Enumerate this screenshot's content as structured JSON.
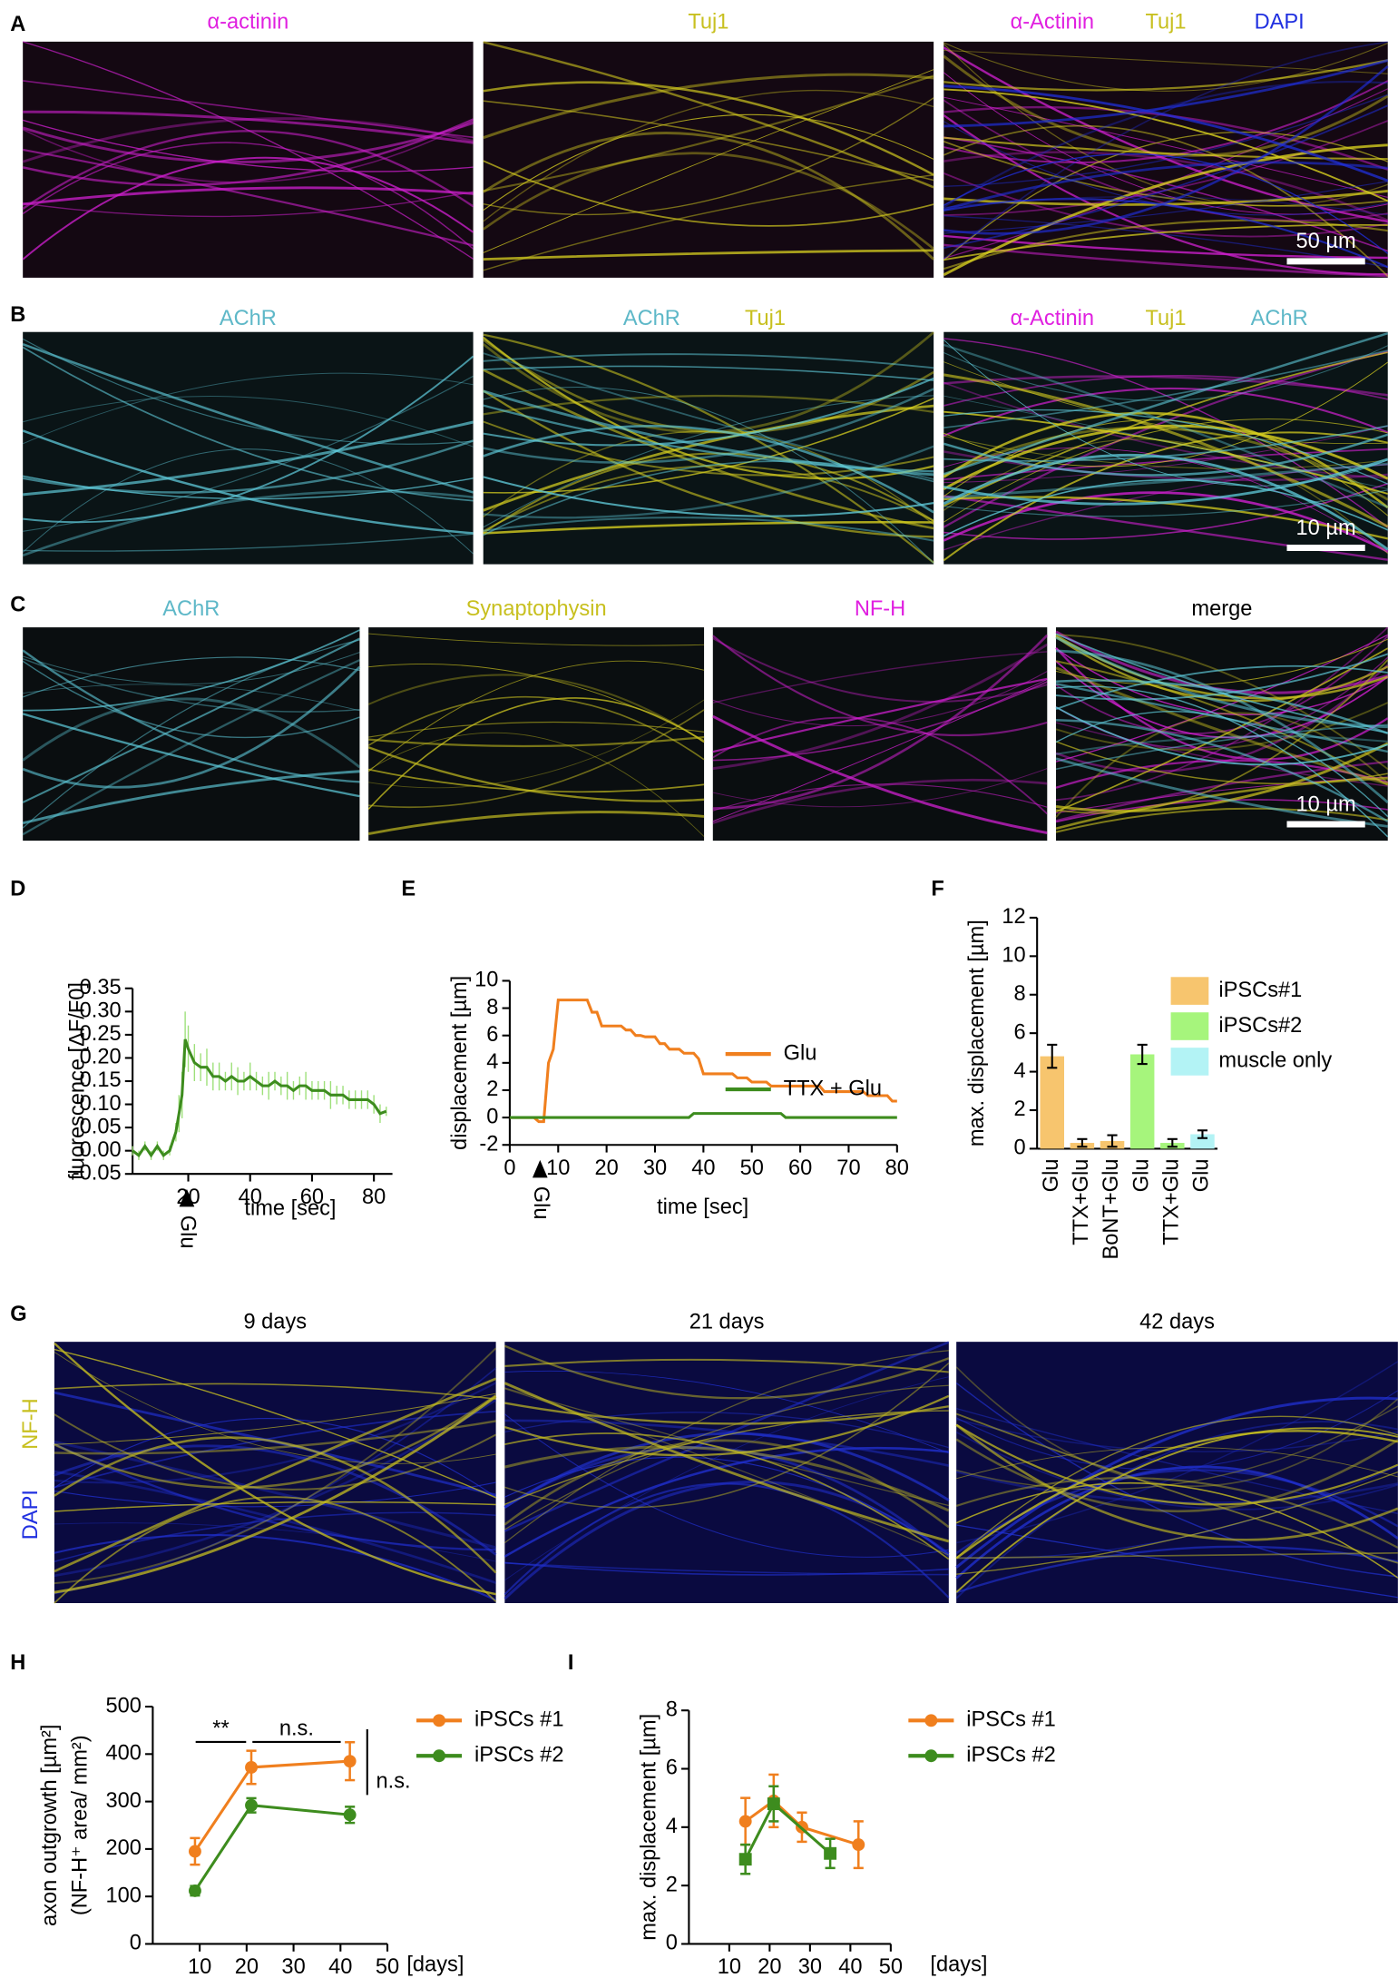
{
  "panel_labels": [
    "A",
    "B",
    "C",
    "D",
    "E",
    "F",
    "G",
    "H",
    "I"
  ],
  "image_rows": [
    {
      "images": [
        {
          "labels": [
            {
              "text": "α-actinin",
              "color": "#e020e0"
            }
          ]
        },
        {
          "labels": [
            {
              "text": "Tuj1",
              "color": "#c8c020"
            }
          ]
        },
        {
          "labels": [
            {
              "text": "α-Actinin",
              "color": "#e020e0"
            },
            {
              "text": "Tuj1",
              "color": "#c8c020"
            },
            {
              "text": "DAPI",
              "color": "#2030e0"
            }
          ]
        }
      ],
      "scale_bar": "50 µm"
    },
    {
      "images": [
        {
          "labels": [
            {
              "text": "AChR",
              "color": "#5eb8c8"
            }
          ]
        },
        {
          "labels": [
            {
              "text": "AChR",
              "color": "#5eb8c8"
            },
            {
              "text": "Tuj1",
              "color": "#c8c020"
            }
          ]
        },
        {
          "labels": [
            {
              "text": "α-Actinin",
              "color": "#e020e0"
            },
            {
              "text": "Tuj1",
              "color": "#c8c020"
            },
            {
              "text": "AChR",
              "color": "#5eb8c8"
            }
          ]
        }
      ],
      "scale_bar": "10 µm"
    },
    {
      "images": [
        {
          "labels": [
            {
              "text": "AChR",
              "color": "#5eb8c8"
            }
          ]
        },
        {
          "labels": [
            {
              "text": "Synaptophysin",
              "color": "#c8c020"
            }
          ]
        },
        {
          "labels": [
            {
              "text": "NF-H",
              "color": "#e020e0"
            }
          ]
        },
        {
          "labels": [
            {
              "text": "merge",
              "color": "#000000"
            }
          ]
        }
      ],
      "scale_bar": "10 µm"
    },
    {
      "images": [
        {
          "labels": [
            {
              "text": "9 days",
              "color": "#000000"
            }
          ]
        },
        {
          "labels": [
            {
              "text": "21 days",
              "color": "#000000"
            }
          ]
        },
        {
          "labels": [
            {
              "text": "42 days",
              "color": "#000000"
            }
          ]
        }
      ],
      "side_labels": [
        {
          "text": "NF-H",
          "color": "#c8c020"
        },
        {
          "text": "DAPI",
          "color": "#2030e0"
        }
      ]
    }
  ],
  "chart_data": [
    {
      "type": "line",
      "ylabel": [
        "fluorescence [ΔF/F0]"
      ],
      "xlabel": "time [sec]",
      "annotation": "Glu",
      "x": [
        2,
        4,
        6,
        8,
        10,
        12,
        14,
        16,
        17,
        18,
        19,
        20,
        22,
        24,
        26,
        28,
        30,
        32,
        34,
        36,
        38,
        40,
        42,
        44,
        46,
        48,
        50,
        52,
        54,
        56,
        58,
        60,
        62,
        64,
        66,
        68,
        70,
        72,
        74,
        76,
        78,
        80,
        82,
        84
      ],
      "series": [
        {
          "color": "#3d8c1e",
          "error_color": "#9ee07a",
          "values": [
            0,
            -0.01,
            0.01,
            -0.01,
            0.01,
            -0.01,
            0,
            0.04,
            0.08,
            0.12,
            0.24,
            0.22,
            0.19,
            0.18,
            0.18,
            0.16,
            0.16,
            0.15,
            0.16,
            0.15,
            0.15,
            0.16,
            0.15,
            0.14,
            0.14,
            0.15,
            0.14,
            0.14,
            0.13,
            0.14,
            0.14,
            0.13,
            0.13,
            0.13,
            0.12,
            0.12,
            0.12,
            0.11,
            0.11,
            0.11,
            0.11,
            0.1,
            0.08,
            0.085
          ],
          "errors": [
            0.01,
            0.01,
            0.01,
            0.01,
            0.01,
            0.01,
            0.01,
            0.02,
            0.04,
            0.05,
            0.06,
            0.05,
            0.04,
            0.03,
            0.04,
            0.03,
            0.03,
            0.02,
            0.03,
            0.03,
            0.02,
            0.03,
            0.02,
            0.02,
            0.03,
            0.02,
            0.02,
            0.03,
            0.02,
            0.02,
            0.03,
            0.02,
            0.02,
            0.02,
            0.03,
            0.02,
            0.02,
            0.02,
            0.02,
            0.02,
            0.02,
            0.02,
            0.02,
            0.01
          ]
        }
      ],
      "xlim": [
        2,
        86
      ],
      "xticks": [
        20,
        40,
        60,
        80
      ],
      "ylim": [
        -0.05,
        0.35
      ],
      "yticks": [
        0.35,
        {
          "value": 0.3,
          "label": "0.30"
        },
        0.25,
        {
          "value": 0.2,
          "label": "0.20"
        },
        0.15,
        {
          "value": 0.1,
          "label": "0.10"
        },
        0.05,
        {
          "value": 0,
          "label": "0.00"
        },
        -0.05
      ]
    },
    {
      "type": "line",
      "ylabel": [
        "displacement [µm]"
      ],
      "xlabel": "time [sec]",
      "annotation": "Glu",
      "legend": "upper right",
      "x": [
        0,
        1,
        2,
        3,
        4,
        5,
        6,
        7,
        8,
        9,
        10,
        11,
        12,
        13,
        14,
        15,
        16,
        17,
        18,
        19,
        20,
        21,
        22,
        23,
        24,
        25,
        26,
        27,
        28,
        29,
        30,
        31,
        32,
        33,
        34,
        35,
        36,
        37,
        38,
        39,
        40,
        41,
        42,
        43,
        44,
        45,
        46,
        47,
        48,
        49,
        50,
        51,
        52,
        53,
        54,
        55,
        56,
        57,
        58,
        59,
        60,
        61,
        62,
        63,
        64,
        65,
        66,
        67,
        68,
        69,
        70,
        71,
        72,
        73,
        74,
        75,
        76,
        77,
        78,
        79,
        80
      ],
      "series": [
        {
          "name": "Glu",
          "color": "#f07f1e",
          "values": [
            0,
            0,
            0,
            0,
            0,
            0,
            -0.3,
            -0.3,
            4,
            5,
            8.6,
            8.6,
            8.6,
            8.6,
            8.6,
            8.6,
            8.6,
            7.7,
            7.7,
            6.7,
            6.7,
            6.7,
            6.7,
            6.7,
            6.4,
            6.4,
            6.0,
            6.0,
            5.9,
            5.9,
            5.9,
            5.4,
            5.4,
            5.0,
            5.0,
            5.0,
            4.7,
            4.7,
            4.7,
            4.3,
            3.2,
            3.2,
            3.2,
            3.2,
            3.2,
            3.2,
            3.2,
            2.9,
            2.9,
            2.9,
            2.6,
            2.6,
            2.6,
            2.6,
            2.3,
            2.3,
            2.3,
            2.3,
            2.3,
            2.3,
            2.3,
            2.3,
            2.3,
            2.3,
            2.3,
            1.9,
            1.9,
            1.9,
            1.9,
            1.9,
            1.9,
            1.9,
            1.9,
            1.9,
            1.6,
            1.6,
            1.6,
            1.6,
            1.6,
            1.2,
            1.2
          ]
        },
        {
          "name": "TTX + Glu",
          "color": "#3d8c1e",
          "values": [
            0,
            0,
            0,
            0,
            0,
            0,
            0,
            0,
            0,
            0,
            0,
            0,
            0,
            0,
            0,
            0,
            0,
            0,
            0,
            0,
            0,
            0,
            0,
            0,
            0,
            0,
            0,
            0,
            0,
            0,
            0,
            0,
            0,
            0,
            0,
            0,
            0,
            0,
            0.3,
            0.3,
            0.3,
            0.3,
            0.3,
            0.3,
            0.3,
            0.3,
            0.3,
            0.3,
            0.3,
            0.3,
            0.3,
            0.3,
            0.3,
            0.3,
            0.3,
            0.3,
            0.3,
            0,
            0,
            0,
            0,
            0,
            0,
            0,
            0,
            0,
            0,
            0,
            0,
            0,
            0,
            0,
            0,
            0,
            0,
            0,
            0,
            0,
            0,
            0,
            0
          ]
        }
      ],
      "xlim": [
        0,
        80
      ],
      "xticks": [
        0,
        10,
        20,
        30,
        40,
        50,
        60,
        70,
        80
      ],
      "ylim": [
        -2,
        10
      ],
      "yticks": [
        -2,
        0,
        2,
        4,
        6,
        8,
        10
      ]
    },
    {
      "type": "bar",
      "ylabel": [
        "max. displacement [µm]"
      ],
      "legend": "upper right",
      "categories": [
        "Glu",
        "TTX+Glu",
        "BoNT+Glu",
        "Glu",
        "TTX+Glu",
        "Glu"
      ],
      "series": [
        {
          "name": "iPSCs#1",
          "color": "#f7c56e",
          "point_color": "#f07f1e",
          "values": [
            4.8,
            0.3,
            0.4,
            null,
            null,
            null
          ],
          "errors": [
            0.6,
            0.2,
            0.3,
            null,
            null,
            null
          ]
        },
        {
          "name": "iPSCs#2",
          "color": "#a6f57c",
          "point_color": "#3d8c1e",
          "values": [
            null,
            null,
            null,
            4.9,
            0.3,
            null
          ],
          "errors": [
            null,
            null,
            null,
            0.5,
            0.2,
            null
          ]
        },
        {
          "name": "muscle only",
          "color": "#b3f3f5",
          "point_color": "#3a8ee8",
          "values": [
            null,
            null,
            null,
            null,
            null,
            0.75
          ],
          "errors": [
            null,
            null,
            null,
            null,
            null,
            0.2
          ]
        }
      ],
      "ylim": [
        0,
        12
      ],
      "yticks": [
        0,
        2,
        4,
        6,
        8,
        10,
        12
      ]
    },
    {
      "type": "line",
      "ylabel": [
        "axon outgrowth [µm²]",
        "(NF-H⁺ area/ mm²)"
      ],
      "xlabel": "[days]",
      "legend": "upper right",
      "annotations": [
        "**",
        "n.s.",
        "n.s."
      ],
      "x": [
        9,
        21,
        42
      ],
      "series": [
        {
          "name": "iPSCs #1",
          "color": "#f07f1e",
          "marker": "circle",
          "values": [
            195,
            372,
            385
          ],
          "errors": [
            28,
            35,
            40
          ]
        },
        {
          "name": "iPSCs #2",
          "color": "#3d8c1e",
          "marker": "circle",
          "values": [
            112,
            292,
            272
          ],
          "errors": [
            10,
            15,
            17
          ]
        }
      ],
      "xlim": [
        0,
        50
      ],
      "xticks": [
        10,
        20,
        30,
        40,
        50
      ],
      "ylim": [
        0,
        500
      ],
      "yticks": [
        0,
        100,
        200,
        300,
        400,
        500
      ]
    },
    {
      "type": "line",
      "ylabel": [
        "max. displacement [µm]"
      ],
      "xlabel": "[days]",
      "legend": "upper right",
      "series": [
        {
          "name": "iPSCs #1",
          "color": "#f07f1e",
          "marker": "circle",
          "x": [
            14,
            21,
            28,
            42
          ],
          "values": [
            4.2,
            4.9,
            4.0,
            3.4
          ],
          "errors": [
            0.8,
            0.9,
            0.5,
            0.8
          ]
        },
        {
          "name": "iPSCs #2",
          "color": "#3d8c1e",
          "marker": "square",
          "x": [
            14,
            21,
            35
          ],
          "values": [
            2.9,
            4.8,
            3.1
          ],
          "errors": [
            0.5,
            0.6,
            0.5
          ]
        }
      ],
      "xlim": [
        0,
        50
      ],
      "xticks": [
        10,
        20,
        30,
        40,
        50
      ],
      "ylim": [
        0,
        8
      ],
      "yticks": [
        0,
        2,
        4,
        6,
        8
      ]
    }
  ]
}
